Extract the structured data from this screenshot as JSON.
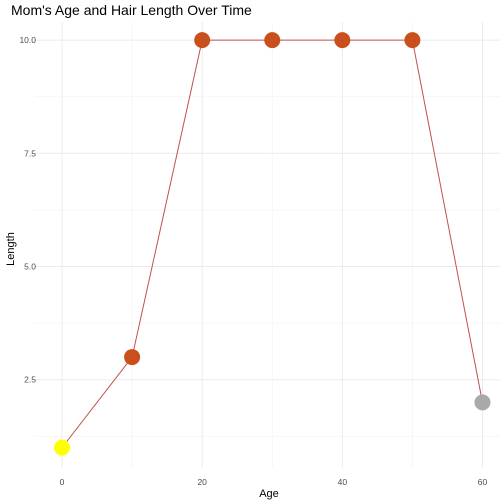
{
  "chart_data": {
    "type": "line",
    "title": "Mom's Age and Hair Length Over Time",
    "xlabel": "Age",
    "ylabel": "Length",
    "xlim": [
      -4,
      62.5
    ],
    "ylim": [
      0.55,
      10.4
    ],
    "x_ticks": [
      0,
      20,
      40,
      60
    ],
    "y_ticks": [
      2.5,
      5.0,
      7.5,
      10.0
    ],
    "x_tick_labels": [
      "0",
      "20",
      "40",
      "60"
    ],
    "y_tick_labels": [
      "2.5",
      "5.0",
      "7.5",
      "10.0"
    ],
    "grid": true,
    "line_color": "#c0504d",
    "series": [
      {
        "x": [
          0,
          10,
          20,
          30,
          40,
          50,
          60
        ],
        "y": [
          1,
          3,
          10,
          10,
          10,
          10,
          2
        ],
        "colors": [
          "#ffff00",
          "#c9501c",
          "#c9501c",
          "#c9501c",
          "#c9501c",
          "#c9501c",
          "#a9a9a9"
        ]
      }
    ]
  }
}
